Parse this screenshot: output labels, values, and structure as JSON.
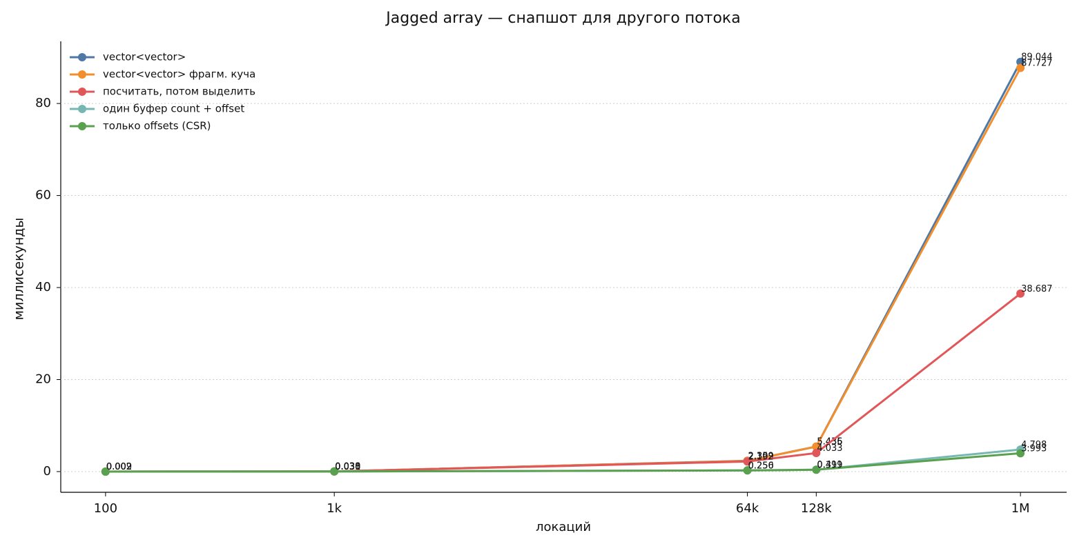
{
  "chart_data": {
    "type": "line",
    "title": "Jagged array — снапшот для другого потока",
    "x_label": "локаций",
    "y_label": "миллисекунды",
    "x_scale": "log",
    "x": [
      100,
      1000,
      64000,
      128000,
      1000000
    ],
    "xlim": [
      63.7,
      1592000
    ],
    "xticks": [
      100,
      {
        "value": 1000,
        "label": "1k"
      },
      {
        "value": 64000,
        "label": "64k"
      },
      {
        "value": 128000,
        "label": "128k"
      },
      {
        "value": 1000000,
        "label": "1M"
      }
    ],
    "ylim": [
      -4.5,
      93.5
    ],
    "yticks": [
      0,
      20,
      40,
      60,
      80
    ],
    "grid": true,
    "legend": "upper left",
    "series": [
      {
        "name": "vector<vector>",
        "color": "#4e79a7",
        "values": [
          0.002,
          0.03,
          2.35,
          5.435,
          89.044
        ],
        "value_labels": [
          "0.002",
          "0.030",
          "2.350",
          "5.435",
          "89.044"
        ]
      },
      {
        "name": "vector<vector> фрагм. куча",
        "color": "#f28e2b",
        "values": [
          0.009,
          0.038,
          2.309,
          5.436,
          87.727
        ],
        "value_labels": [
          "0.009",
          "0.038",
          "2.309",
          "5.436",
          "87.727"
        ]
      },
      {
        "name": "посчитать, потом выделить",
        "color": "#e15759",
        "values": [
          0.002,
          0.031,
          2.192,
          4.033,
          38.687
        ],
        "value_labels": [
          "0.002",
          "0.031",
          "2.192",
          "4.033",
          "38.687"
        ]
      },
      {
        "name": "один буфер count + offset",
        "color": "#76b7b2",
        "values": [
          0.002,
          0.03,
          0.256,
          0.411,
          4.798
        ],
        "value_labels": [
          "0.002",
          "0.030",
          "0.256",
          "0.411",
          "4.798"
        ]
      },
      {
        "name": "только offsets (CSR)",
        "color": "#59a14f",
        "values": [
          0.002,
          0.03,
          0.25,
          0.399,
          3.993
        ],
        "value_labels": [
          "0.002",
          "0.030",
          "0.250",
          "0.399",
          "3.993"
        ]
      }
    ]
  }
}
